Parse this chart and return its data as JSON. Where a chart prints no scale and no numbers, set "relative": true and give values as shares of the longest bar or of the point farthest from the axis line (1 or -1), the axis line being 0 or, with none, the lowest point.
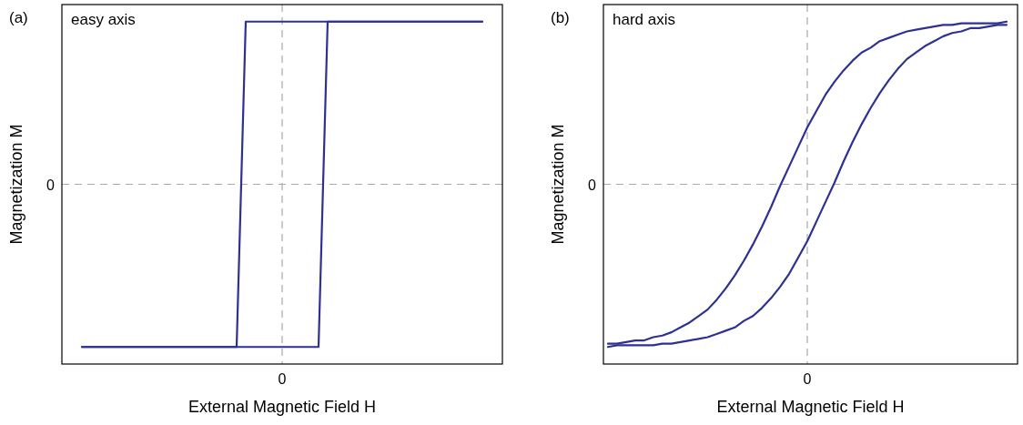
{
  "chart_data": [
    {
      "type": "line",
      "title": "(a)",
      "annotations": [
        "easy axis",
        "0"
      ],
      "xlabel": "External Magnetic Field H",
      "ylabel": "Magnetization M",
      "relative": true,
      "line_style": "solid",
      "categories": [
        null,
        null,
        null,
        null,
        null,
        null,
        null,
        null,
        null,
        null,
        null,
        null,
        null,
        null,
        null,
        null,
        null,
        null,
        null,
        null,
        null,
        null,
        null,
        null,
        null,
        null,
        null,
        null,
        null,
        null,
        null,
        null,
        null,
        null,
        null,
        null,
        null,
        null,
        null,
        null,
        null,
        null,
        null,
        null,
        null
      ],
      "ref_lines": [
        {
          "axis": "y",
          "value": 0,
          "label": "0",
          "color": "#aaaaaa",
          "line_style": "dashed"
        }
      ],
      "series": [
        {
          "color": "#2e3192",
          "values": [
            -1,
            -1,
            -1,
            -1,
            -1,
            -1,
            -1,
            -1,
            -1,
            -1,
            -1,
            -1,
            -1,
            -1,
            -1,
            -1,
            -1,
            -1,
            1,
            1,
            1,
            1,
            1,
            1,
            1,
            1,
            1,
            1,
            1,
            1,
            1,
            1,
            1,
            1,
            1,
            1,
            1,
            1,
            1,
            1,
            1,
            1,
            1,
            1,
            1
          ]
        },
        {
          "color": "#2e3192",
          "values": [
            -1,
            -1,
            -1,
            -1,
            -1,
            -1,
            -1,
            -1,
            -1,
            -1,
            -1,
            -1,
            -1,
            -1,
            -1,
            -1,
            -1,
            -1,
            -1,
            -1,
            -1,
            -1,
            -1,
            -1,
            -1,
            -1,
            -1,
            1,
            1,
            1,
            1,
            1,
            1,
            1,
            1,
            1,
            1,
            1,
            1,
            1,
            1,
            1,
            1,
            1,
            1
          ]
        }
      ]
    },
    {
      "type": "line",
      "title": "(b)",
      "annotations": [
        "hard axis",
        "0"
      ],
      "xlabel": "External Magnetic Field H",
      "ylabel": "Magnetization M",
      "relative": true,
      "line_style": "solid",
      "categories": [
        null,
        null,
        null,
        null,
        null,
        null,
        null,
        null,
        null,
        null,
        null,
        null,
        null,
        null,
        null,
        null,
        null,
        null,
        null,
        null,
        null,
        null,
        null,
        null,
        null,
        null,
        null,
        null,
        null,
        null,
        null,
        null,
        null,
        null,
        null,
        null,
        null,
        null,
        null,
        null,
        null,
        null,
        null,
        null,
        null
      ],
      "ref_lines": [
        {
          "axis": "y",
          "value": 0,
          "label": "0",
          "color": "#aaaaaa",
          "line_style": "dashed"
        }
      ],
      "series": [
        {
          "color": "#2e3192",
          "values": [
            -0.98,
            -0.98,
            -0.97,
            -0.96,
            -0.96,
            -0.94,
            -0.93,
            -0.91,
            -0.88,
            -0.85,
            -0.81,
            -0.77,
            -0.71,
            -0.64,
            -0.56,
            -0.47,
            -0.37,
            -0.26,
            -0.14,
            -0.01,
            0.11,
            0.23,
            0.35,
            0.45,
            0.55,
            0.63,
            0.7,
            0.76,
            0.81,
            0.84,
            0.88,
            0.9,
            0.92,
            0.94,
            0.95,
            0.96,
            0.97,
            0.98,
            0.98,
            0.99,
            0.99,
            0.99,
            0.99,
            0.99,
            1
          ]
        },
        {
          "color": "#2e3192",
          "values": [
            -1,
            -0.99,
            -0.99,
            -0.99,
            -0.99,
            -0.99,
            -0.98,
            -0.98,
            -0.97,
            -0.96,
            -0.95,
            -0.94,
            -0.92,
            -0.9,
            -0.88,
            -0.84,
            -0.81,
            -0.76,
            -0.7,
            -0.63,
            -0.55,
            -0.45,
            -0.35,
            -0.23,
            -0.11,
            0.01,
            0.14,
            0.26,
            0.37,
            0.47,
            0.56,
            0.64,
            0.71,
            0.77,
            0.81,
            0.85,
            0.88,
            0.91,
            0.93,
            0.94,
            0.96,
            0.96,
            0.97,
            0.98,
            0.98
          ]
        }
      ]
    }
  ]
}
